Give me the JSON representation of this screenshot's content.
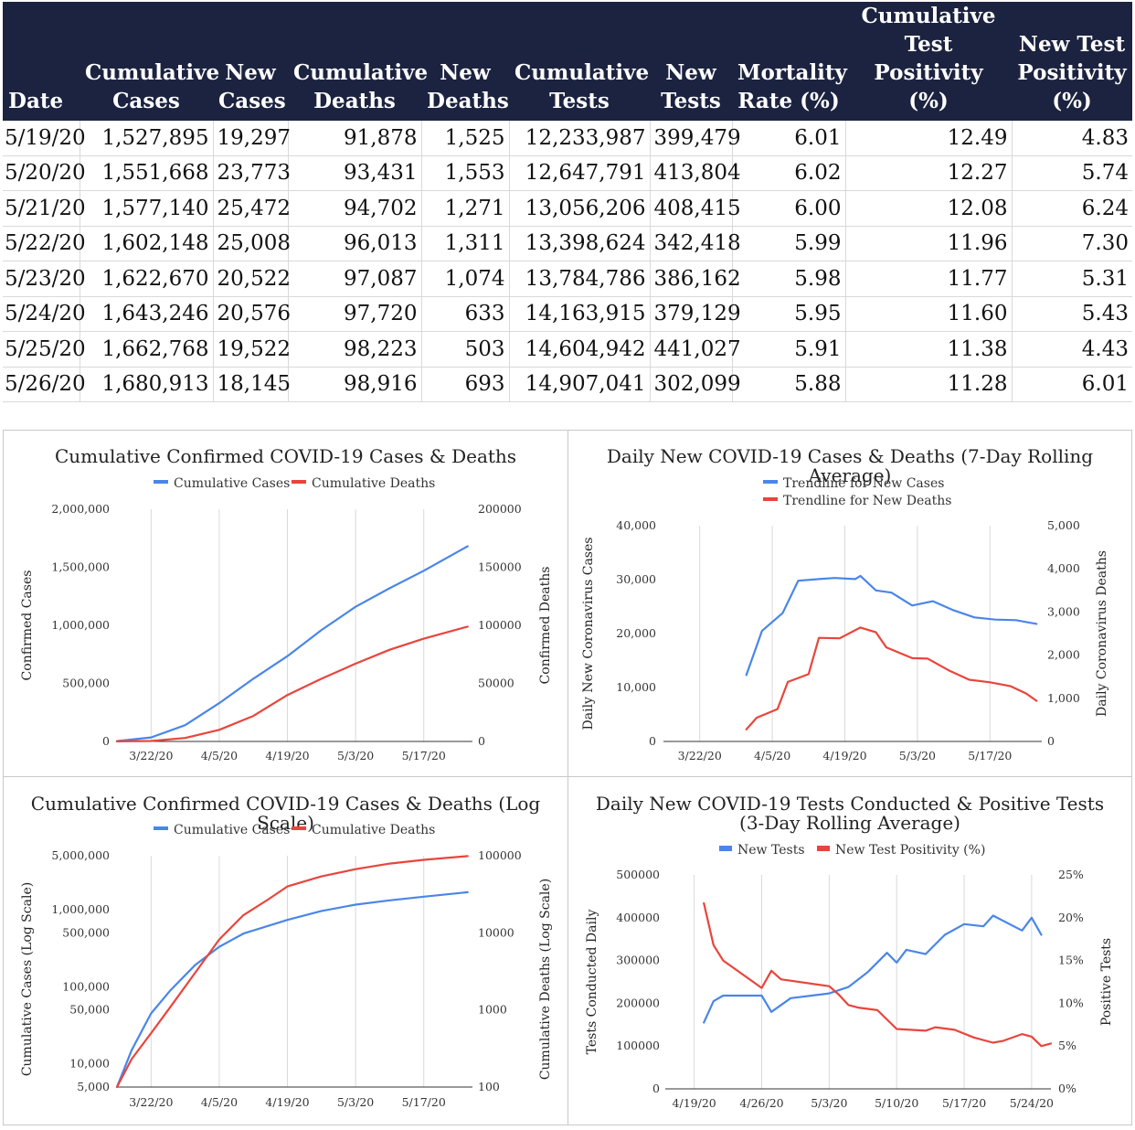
{
  "table": {
    "headers": [
      [
        "Date"
      ],
      [
        "Cumulative",
        "Cases"
      ],
      [
        "New",
        "Cases"
      ],
      [
        "Cumulative",
        "Deaths"
      ],
      [
        "New",
        "Deaths"
      ],
      [
        "Cumulative",
        "Tests"
      ],
      [
        "New",
        "Tests"
      ],
      [
        "Mortality",
        "Rate (%)"
      ],
      [
        "Cumulative",
        "Test Positivity",
        "(%)"
      ],
      [
        "New Test",
        "Positivity",
        "(%)"
      ]
    ],
    "rows": [
      [
        "5/19/20",
        "1,527,895",
        "19,297",
        "91,878",
        "1,525",
        "12,233,987",
        "399,479",
        "6.01",
        "12.49",
        "4.83"
      ],
      [
        "5/20/20",
        "1,551,668",
        "23,773",
        "93,431",
        "1,553",
        "12,647,791",
        "413,804",
        "6.02",
        "12.27",
        "5.74"
      ],
      [
        "5/21/20",
        "1,577,140",
        "25,472",
        "94,702",
        "1,271",
        "13,056,206",
        "408,415",
        "6.00",
        "12.08",
        "6.24"
      ],
      [
        "5/22/20",
        "1,602,148",
        "25,008",
        "96,013",
        "1,311",
        "13,398,624",
        "342,418",
        "5.99",
        "11.96",
        "7.30"
      ],
      [
        "5/23/20",
        "1,622,670",
        "20,522",
        "97,087",
        "1,074",
        "13,784,786",
        "386,162",
        "5.98",
        "11.77",
        "5.31"
      ],
      [
        "5/24/20",
        "1,643,246",
        "20,576",
        "97,720",
        "633",
        "14,163,915",
        "379,129",
        "5.95",
        "11.60",
        "5.43"
      ],
      [
        "5/25/20",
        "1,662,768",
        "19,522",
        "98,223",
        "503",
        "14,604,942",
        "441,027",
        "5.91",
        "11.38",
        "4.43"
      ],
      [
        "5/26/20",
        "1,680,913",
        "18,145",
        "98,916",
        "693",
        "14,907,041",
        "302,099",
        "5.88",
        "11.28",
        "6.01"
      ]
    ]
  },
  "colors": {
    "blue": "#4a86e8",
    "red": "#e8453c",
    "header_bg": "#1c2340",
    "grid": "#d9d9d9"
  },
  "chart_data": [
    {
      "id": "cumulative",
      "type": "line",
      "title": "Cumulative Confirmed COVID-19 Cases & Deaths",
      "ylabel_left": "Confirmed Cases",
      "ylabel_right": "Confirmed Deaths",
      "ylim_left": [
        0,
        2000000
      ],
      "ylim_right": [
        0,
        200000
      ],
      "yticks_left": [
        "0",
        "500,000",
        "1,000,000",
        "1,500,000",
        "2,000,000"
      ],
      "yticks_right": [
        "0",
        "50000",
        "100000",
        "150000",
        "200000"
      ],
      "xlim": [
        "3/15/20",
        "5/27/20"
      ],
      "xticks": [
        "3/22/20",
        "4/5/20",
        "4/19/20",
        "5/3/20",
        "5/17/20"
      ],
      "legend_position": "top",
      "grid": true,
      "series": [
        {
          "name": "Cumulative Cases",
          "axis": "left",
          "color": "#4a86e8",
          "x": [
            "3/15/20",
            "3/22/20",
            "3/29/20",
            "4/5/20",
            "4/12/20",
            "4/19/20",
            "4/26/20",
            "5/3/20",
            "5/10/20",
            "5/17/20",
            "5/26/20"
          ],
          "y": [
            3500,
            35000,
            140000,
            330000,
            540000,
            735000,
            960000,
            1160000,
            1320000,
            1470000,
            1680913
          ]
        },
        {
          "name": "Cumulative Deaths",
          "axis": "right",
          "color": "#e8453c",
          "x": [
            "3/15/20",
            "3/22/20",
            "3/29/20",
            "4/5/20",
            "4/12/20",
            "4/19/20",
            "4/26/20",
            "5/3/20",
            "5/10/20",
            "5/17/20",
            "5/26/20"
          ],
          "y": [
            60,
            400,
            3000,
            10000,
            22000,
            40000,
            54000,
            67000,
            79000,
            88500,
            98916
          ]
        }
      ]
    },
    {
      "id": "daily",
      "type": "line",
      "title": "Daily New COVID-19 Cases & Deaths (7-Day Rolling Average)",
      "ylabel_left": "Daily New Coronavirus Cases",
      "ylabel_right": "Daily Coronavirus Deaths",
      "ylim_left": [
        0,
        40000
      ],
      "ylim_right": [
        0,
        5000
      ],
      "yticks_left": [
        "0",
        "10,000",
        "20,000",
        "30,000",
        "40,000"
      ],
      "yticks_right": [
        "0",
        "1,000",
        "2,000",
        "3,000",
        "4,000",
        "5,000"
      ],
      "xlim": [
        "3/15/20",
        "5/27/20"
      ],
      "xticks": [
        "3/22/20",
        "4/5/20",
        "4/19/20",
        "5/3/20",
        "5/17/20"
      ],
      "legend_position": "top",
      "grid": true,
      "series": [
        {
          "name": "Trendline for New Cases",
          "axis": "left",
          "color": "#4a86e8",
          "x": [
            "3/31/20",
            "4/3/20",
            "4/7/20",
            "4/10/20",
            "4/14/20",
            "4/17/20",
            "4/21/20",
            "4/22/20",
            "4/25/20",
            "4/28/20",
            "5/2/20",
            "5/6/20",
            "5/10/20",
            "5/14/20",
            "5/18/20",
            "5/22/20",
            "5/26/20"
          ],
          "y": [
            12300,
            20500,
            23800,
            29800,
            30100,
            30300,
            30100,
            30700,
            28000,
            27600,
            25200,
            26000,
            24300,
            23000,
            22600,
            22500,
            21800
          ]
        },
        {
          "name": "Trendline for New Deaths",
          "axis": "right",
          "color": "#e8453c",
          "x": [
            "3/31/20",
            "4/2/20",
            "4/6/20",
            "4/8/20",
            "4/12/20",
            "4/14/20",
            "4/18/20",
            "4/22/20",
            "4/25/20",
            "4/27/20",
            "5/2/20",
            "5/5/20",
            "5/9/20",
            "5/13/20",
            "5/17/20",
            "5/21/20",
            "5/24/20",
            "5/26/20"
          ],
          "y": [
            280,
            550,
            750,
            1380,
            1560,
            2400,
            2390,
            2640,
            2530,
            2180,
            1930,
            1920,
            1650,
            1430,
            1370,
            1280,
            1110,
            940
          ]
        }
      ]
    },
    {
      "id": "cumulative_log",
      "type": "line",
      "title": "Cumulative Confirmed COVID-19 Cases & Deaths (Log Scale)",
      "ylabel_left": "Cumulative Cases (Log Scale)",
      "ylabel_right": "Cumulative Deaths (Log Scale)",
      "yscale": "log",
      "ylim_left": [
        5000,
        5000000
      ],
      "ylim_right": [
        100,
        100000
      ],
      "yticks_left": [
        "5,000",
        "10,000",
        "50,000",
        "100,000",
        "500,000",
        "1,000,000",
        "5,000,000"
      ],
      "yticks_right": [
        "100",
        "1000",
        "10000",
        "100000"
      ],
      "xlim": [
        "3/15/20",
        "5/27/20"
      ],
      "xticks": [
        "3/22/20",
        "4/5/20",
        "4/19/20",
        "5/3/20",
        "5/17/20"
      ],
      "legend_position": "top",
      "grid": true,
      "series": [
        {
          "name": "Cumulative Cases",
          "axis": "left",
          "color": "#4a86e8",
          "x": [
            "3/15/20",
            "3/18/20",
            "3/22/20",
            "3/26/20",
            "3/31/20",
            "4/5/20",
            "4/10/20",
            "4/19/20",
            "4/26/20",
            "5/3/20",
            "5/10/20",
            "5/17/20",
            "5/26/20"
          ],
          "y": [
            5000,
            15000,
            45000,
            90000,
            190000,
            330000,
            490000,
            735000,
            960000,
            1160000,
            1320000,
            1470000,
            1680913
          ]
        },
        {
          "name": "Cumulative Deaths",
          "axis": "right",
          "color": "#e8453c",
          "x": [
            "3/15/20",
            "3/18/20",
            "3/22/20",
            "3/26/20",
            "3/31/20",
            "4/5/20",
            "4/10/20",
            "4/15/20",
            "4/19/20",
            "4/26/20",
            "5/3/20",
            "5/10/20",
            "5/17/20",
            "5/26/20"
          ],
          "y": [
            100,
            230,
            500,
            1100,
            3000,
            8200,
            17000,
            27000,
            40000,
            54000,
            67000,
            79000,
            88500,
            98916
          ]
        }
      ]
    },
    {
      "id": "tests",
      "type": "line",
      "title": "Daily New COVID-19 Tests Conducted & Positive Tests (3-Day Rolling Average)",
      "ylabel_left": "Tests Conducted Daily",
      "ylabel_right": "Positive Tests",
      "ylim_left": [
        0,
        500000
      ],
      "ylim_right": [
        0,
        25
      ],
      "yticks_left": [
        "0",
        "100000",
        "200000",
        "300000",
        "400000",
        "500000"
      ],
      "yticks_right": [
        "0%",
        "5%",
        "10%",
        "15%",
        "20%",
        "25%"
      ],
      "xlim": [
        "4/16/20",
        "5/26/20"
      ],
      "xticks": [
        "4/19/20",
        "4/26/20",
        "5/3/20",
        "5/10/20",
        "5/17/20",
        "5/24/20"
      ],
      "legend_position": "top",
      "grid": true,
      "series": [
        {
          "name": "New Tests",
          "axis": "left",
          "color": "#4a86e8",
          "x": [
            "4/20/20",
            "4/21/20",
            "4/22/20",
            "4/26/20",
            "4/27/20",
            "4/29/20",
            "5/3/20",
            "5/5/20",
            "5/7/20",
            "5/9/20",
            "5/10/20",
            "5/11/20",
            "5/13/20",
            "5/15/20",
            "5/17/20",
            "5/19/20",
            "5/20/20",
            "5/23/20",
            "5/24/20",
            "5/25/20"
          ],
          "y": [
            155000,
            205000,
            218000,
            218000,
            180000,
            212000,
            223000,
            238000,
            273000,
            318000,
            295000,
            325000,
            315000,
            360000,
            385000,
            380000,
            405000,
            370000,
            400000,
            360000
          ]
        },
        {
          "name": "New Test Positivity (%)",
          "axis": "right",
          "color": "#e8453c",
          "x": [
            "4/20/20",
            "4/21/20",
            "4/22/20",
            "4/26/20",
            "4/27/20",
            "4/28/20",
            "5/3/20",
            "5/4/20",
            "5/5/20",
            "5/6/20",
            "5/8/20",
            "5/10/20",
            "5/13/20",
            "5/14/20",
            "5/16/20",
            "5/18/20",
            "5/20/20",
            "5/21/20",
            "5/23/20",
            "5/24/20",
            "5/25/20",
            "5/26/20"
          ],
          "y": [
            21.7,
            16.8,
            15.0,
            11.8,
            13.8,
            12.8,
            12.0,
            11.0,
            9.8,
            9.5,
            9.2,
            7.0,
            6.8,
            7.2,
            6.9,
            6.0,
            5.4,
            5.6,
            6.4,
            6.1,
            5.0,
            5.3
          ]
        }
      ]
    }
  ]
}
